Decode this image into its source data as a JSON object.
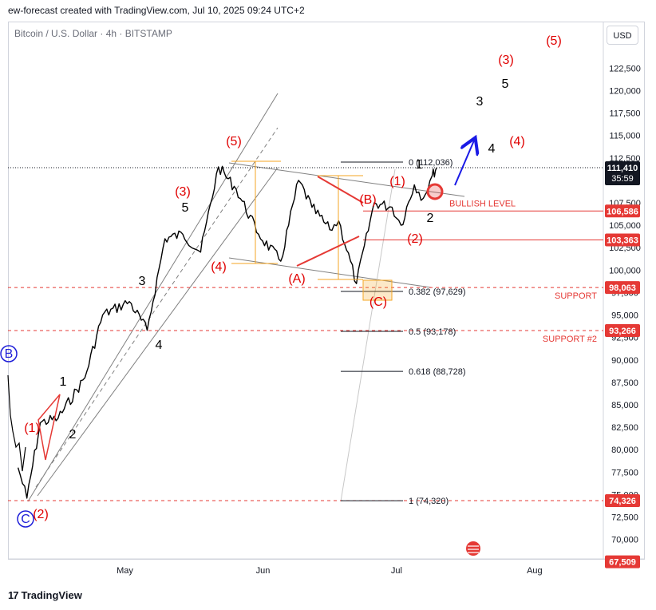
{
  "header": {
    "caption": "ew-forecast created with TradingView.com, Jul 10, 2025 09:24 UTC+2",
    "symbol": "Bitcoin / U.S. Dollar · 4h · BITSTAMP",
    "currency_button": "USD"
  },
  "footer": {
    "brand": "TradingView",
    "logo": "17"
  },
  "colors": {
    "wave_red": "#e00000",
    "wave_black": "#000000",
    "wave_blue": "#1d1dd8",
    "level_red": "#e53935",
    "fib_orange": "#f5a623",
    "channel": "#808080",
    "arrow": "#1a1ae6"
  },
  "chart_data": {
    "type": "line",
    "title": "",
    "ylabel": "",
    "ylim": [
      66000,
      128200
    ],
    "x_axis_labels": [
      "May",
      "Jun",
      "Jul",
      "Aug"
    ],
    "y_ticks": [
      "122,500",
      "120,000",
      "117,500",
      "115,000",
      "112,500",
      "110,000",
      "107,500",
      "105,000",
      "102,500",
      "100,000",
      "97,500",
      "95,000",
      "92,500",
      "90,000",
      "87,500",
      "85,000",
      "82,500",
      "80,000",
      "77,500",
      "75,000",
      "72,500",
      "70,000"
    ],
    "price_series_checkpoints": [
      {
        "date": "2025-04-07",
        "y": 78000
      },
      {
        "date": "2025-04-09",
        "y": 74600
      },
      {
        "date": "2025-04-12",
        "y": 83000
      },
      {
        "date": "2025-04-16",
        "y": 83500
      },
      {
        "date": "2025-04-22",
        "y": 88000
      },
      {
        "date": "2025-04-26",
        "y": 95000
      },
      {
        "date": "2025-05-02",
        "y": 96500
      },
      {
        "date": "2025-05-06",
        "y": 93300
      },
      {
        "date": "2025-05-10",
        "y": 103500
      },
      {
        "date": "2025-05-14",
        "y": 104000
      },
      {
        "date": "2025-05-18",
        "y": 102000
      },
      {
        "date": "2025-05-22",
        "y": 111500
      },
      {
        "date": "2025-05-26",
        "y": 109000
      },
      {
        "date": "2025-05-31",
        "y": 104000
      },
      {
        "date": "2025-06-05",
        "y": 101000
      },
      {
        "date": "2025-06-09",
        "y": 110000
      },
      {
        "date": "2025-06-12",
        "y": 107000
      },
      {
        "date": "2025-06-16",
        "y": 104500
      },
      {
        "date": "2025-06-18",
        "y": 105500
      },
      {
        "date": "2025-06-22",
        "y": 98500
      },
      {
        "date": "2025-06-26",
        "y": 107500
      },
      {
        "date": "2025-06-30",
        "y": 107000
      },
      {
        "date": "2025-07-02",
        "y": 105000
      },
      {
        "date": "2025-07-05",
        "y": 109500
      },
      {
        "date": "2025-07-07",
        "y": 108000
      },
      {
        "date": "2025-07-09",
        "y": 110500
      },
      {
        "date": "2025-07-10",
        "y": 111410
      }
    ],
    "price_labels": [
      {
        "text": "111,410",
        "value": 111410,
        "sub": "35:59",
        "style": "dark"
      },
      {
        "text": "106,586",
        "value": 106586,
        "style": "red"
      },
      {
        "text": "103,363",
        "value": 103363,
        "style": "red"
      },
      {
        "text": "98,063",
        "value": 98063,
        "style": "red"
      },
      {
        "text": "93,266",
        "value": 93266,
        "style": "red"
      },
      {
        "text": "74,326",
        "value": 74326,
        "style": "red"
      },
      {
        "text": "67,509",
        "value": 67509,
        "style": "red"
      }
    ],
    "horizontal_levels": [
      {
        "name": "BULLISH LEVEL",
        "value": 106586,
        "style": "solid-red"
      },
      {
        "name": "",
        "value": 103363,
        "style": "solid-red"
      },
      {
        "name": "SUPPORT",
        "value": 98063,
        "style": "dashed-red"
      },
      {
        "name": "SUPPORT #2",
        "value": 93266,
        "style": "dashed-red"
      },
      {
        "name": "",
        "value": 74326,
        "style": "dashed-red"
      },
      {
        "name": "",
        "value": 111410,
        "style": "dotted-black"
      }
    ],
    "fibonacci": [
      {
        "label": "0 (112,036)",
        "value": 112036
      },
      {
        "label": "0.382 (97,629)",
        "value": 97629
      },
      {
        "label": "0.5 (93,178)",
        "value": 93178
      },
      {
        "label": "0.618 (88,728)",
        "value": 88728
      },
      {
        "label": "1 (74,320)",
        "value": 74320
      }
    ],
    "wave_labels": [
      {
        "text": "(5)",
        "color": "red"
      },
      {
        "text": "(3)",
        "color": "red"
      },
      {
        "text": "5",
        "color": "black"
      },
      {
        "text": "3",
        "color": "black"
      },
      {
        "text": "4",
        "color": "black"
      },
      {
        "text": "(4)",
        "color": "red"
      },
      {
        "text": "(5)",
        "color": "red"
      },
      {
        "text": "(3)",
        "color": "red"
      },
      {
        "text": "(4)",
        "color": "red"
      },
      {
        "text": "5",
        "color": "black"
      },
      {
        "text": "3",
        "color": "black"
      },
      {
        "text": "4",
        "color": "black"
      },
      {
        "text": "(A)",
        "color": "red"
      },
      {
        "text": "(B)",
        "color": "red"
      },
      {
        "text": "(C)",
        "color": "red"
      },
      {
        "text": "(1)",
        "color": "red"
      },
      {
        "text": "(2)",
        "color": "red"
      },
      {
        "text": "1",
        "color": "black"
      },
      {
        "text": "2",
        "color": "black"
      },
      {
        "text": "(1)",
        "color": "red"
      },
      {
        "text": "(2)",
        "color": "red"
      },
      {
        "text": "1",
        "color": "black"
      },
      {
        "text": "2",
        "color": "black"
      },
      {
        "text": "B",
        "color": "blue"
      },
      {
        "text": "C",
        "color": "blue"
      }
    ]
  }
}
